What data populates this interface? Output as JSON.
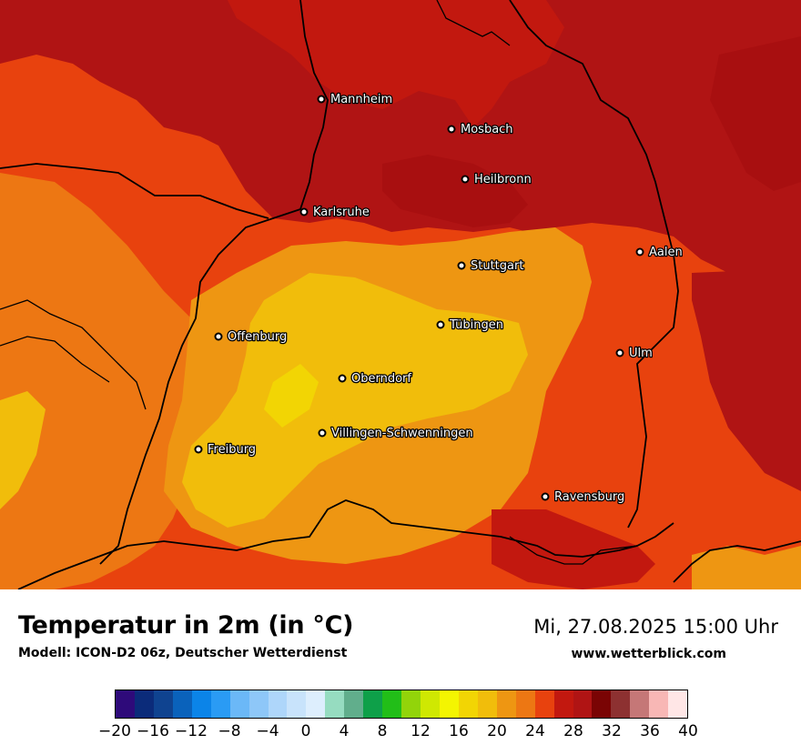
{
  "map": {
    "cities": [
      {
        "name": "Mannheim"
      },
      {
        "name": "Mosbach"
      },
      {
        "name": "Heilbronn"
      },
      {
        "name": "Karlsruhe"
      },
      {
        "name": "Stuttgart"
      },
      {
        "name": "Aalen"
      },
      {
        "name": "Tübingen"
      },
      {
        "name": "Offenburg"
      },
      {
        "name": "Ulm"
      },
      {
        "name": "Oberndorf"
      },
      {
        "name": "Villingen-Schwenningen"
      },
      {
        "name": "Freiburg"
      },
      {
        "name": "Ravensburg"
      }
    ]
  },
  "footer": {
    "title": "Temperatur in 2m (in °C)",
    "subtitle": "Modell: ICON-D2 06z, Deutscher Wetterdienst",
    "datetime": "Mi, 27.08.2025 15:00 Uhr",
    "website": "www.wetterblick.com"
  },
  "legend": {
    "ticks": [
      "−20",
      "−16",
      "−12",
      "−8",
      "−4",
      "0",
      "4",
      "8",
      "12",
      "16",
      "20",
      "24",
      "28",
      "32",
      "36",
      "40"
    ],
    "colors": [
      "#2e0a7a",
      "#0b2b7a",
      "#0f4390",
      "#0a62bb",
      "#0b84e8",
      "#2a9bf4",
      "#6bb8f7",
      "#8ec7f8",
      "#aed6fa",
      "#c8e3fb",
      "#ddeefd",
      "#96dcc0",
      "#61ae8c",
      "#0ea049",
      "#22be18",
      "#92d40a",
      "#cfe802",
      "#f4f501",
      "#f2d504",
      "#f1bd0b",
      "#ee9612",
      "#ed7713",
      "#e8420e",
      "#c2180f",
      "#b01414",
      "#7a0404",
      "#8d3131",
      "#c57777",
      "#f8b7b5",
      "#ffe6e6"
    ]
  }
}
